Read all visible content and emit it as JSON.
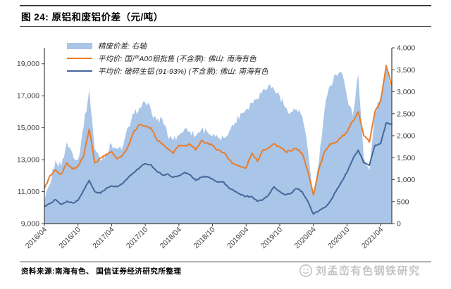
{
  "header": {
    "title": "图 24: 原铝和废铝价差（元/吨）"
  },
  "footer": {
    "source": "资料来源:南海有色、 国信证券经济研究所整理",
    "watermark": "刘孟峦有色钢铁研究",
    "watermark_icon": "smiley-logo-icon"
  },
  "colors": {
    "area": "#A9C5E8",
    "orange_line": "#E87D2B",
    "blue_line": "#44679B",
    "axis": "#404040",
    "tick_text": "#3F3F3F"
  },
  "chart_data": {
    "type": "area",
    "note": "combo chart: filled area on right axis + two lines on left axis; no gridlines; values estimated monthly from pixels",
    "x": [
      "2016/04",
      "2016/05",
      "2016/06",
      "2016/07",
      "2016/08",
      "2016/09",
      "2016/10",
      "2016/11",
      "2016/12",
      "2017/01",
      "2017/02",
      "2017/03",
      "2017/04",
      "2017/05",
      "2017/06",
      "2017/07",
      "2017/08",
      "2017/09",
      "2017/10",
      "2017/11",
      "2017/12",
      "2018/01",
      "2018/02",
      "2018/03",
      "2018/04",
      "2018/05",
      "2018/06",
      "2018/07",
      "2018/08",
      "2018/09",
      "2018/10",
      "2018/11",
      "2018/12",
      "2019/01",
      "2019/02",
      "2019/03",
      "2019/04",
      "2019/05",
      "2019/06",
      "2019/07",
      "2019/08",
      "2019/09",
      "2019/10",
      "2019/11",
      "2019/12",
      "2020/01",
      "2020/02",
      "2020/03",
      "2020/04",
      "2020/05",
      "2020/06",
      "2020/07",
      "2020/08",
      "2020/09",
      "2020/10",
      "2020/11",
      "2020/12",
      "2021/01",
      "2021/02",
      "2021/03",
      "2021/04",
      "2021/05",
      "2021/06"
    ],
    "x_tick_labels": [
      "2016/04",
      "2016/10",
      "2017/04",
      "2017/10",
      "2018/04",
      "2018/10",
      "2019/04",
      "2019/10",
      "2020/04",
      "2020/10",
      "2021/04"
    ],
    "x_tick_every_months": 6,
    "left_axis": {
      "min": 9000,
      "max": 20000,
      "ticks": [
        9000,
        11000,
        13000,
        15000,
        17000,
        19000
      ],
      "tick_labels": [
        "9,000",
        "11,000",
        "13,000",
        "15,000",
        "17,000",
        "19,000"
      ]
    },
    "right_axis": {
      "min": 0,
      "max": 4000,
      "ticks": [
        0,
        500,
        1000,
        1500,
        2000,
        2500,
        3000,
        3500,
        4000
      ],
      "tick_labels": [
        "0",
        "500",
        "1,000",
        "1,500",
        "2,000",
        "2,500",
        "3,000",
        "3,500",
        "4,000"
      ]
    },
    "legend_position": "top",
    "series": [
      {
        "name": "精废价差: 右轴",
        "type": "area",
        "axis": "right",
        "color": "#A9C5E8",
        "values": [
          500,
          900,
          1450,
          1300,
          1850,
          1600,
          1450,
          2200,
          3050,
          1700,
          1450,
          1600,
          1800,
          1700,
          1750,
          2200,
          2500,
          2650,
          2750,
          2600,
          2350,
          2400,
          2000,
          1900,
          2000,
          2150,
          2100,
          2000,
          2150,
          2100,
          2000,
          1950,
          1950,
          2100,
          2300,
          2500,
          2600,
          2750,
          2850,
          3050,
          3150,
          3050,
          2900,
          2650,
          2550,
          2600,
          2450,
          1700,
          620,
          1400,
          2600,
          3150,
          3400,
          3450,
          2900,
          2450,
          3400,
          1500,
          1200,
          2500,
          2900,
          3550,
          3100
        ]
      },
      {
        "name": "平均价: 国产A00铝批售 (不含票): 佛山: 南海有色",
        "type": "line",
        "axis": "left",
        "color": "#E87D2B",
        "values": [
          11200,
          12000,
          12350,
          12100,
          12800,
          12400,
          12600,
          13200,
          14900,
          12800,
          13100,
          13350,
          13500,
          13050,
          13300,
          13900,
          14800,
          15200,
          15100,
          15000,
          14300,
          14000,
          13700,
          13400,
          13900,
          13850,
          13950,
          13600,
          14200,
          14050,
          13900,
          13600,
          13450,
          13000,
          12700,
          12550,
          12500,
          13400,
          12900,
          13600,
          13750,
          14000,
          13800,
          13500,
          13550,
          13700,
          13400,
          12300,
          10800,
          12400,
          13500,
          14000,
          14100,
          14400,
          14700,
          15400,
          16000,
          14500,
          14100,
          16000,
          16700,
          18900,
          17600
        ]
      },
      {
        "name": "平均价: 破碎生铝 (91-93%) (不含票): 佛山: 南海有色",
        "type": "line",
        "axis": "left",
        "color": "#44679B",
        "values": [
          10100,
          10250,
          10500,
          10200,
          10400,
          10300,
          10450,
          11100,
          11700,
          11000,
          10900,
          11200,
          11350,
          11300,
          11500,
          11900,
          12200,
          12500,
          12750,
          12700,
          12300,
          12050,
          12100,
          11900,
          12000,
          12200,
          12050,
          11700,
          11900,
          11950,
          11800,
          11600,
          11600,
          11200,
          11000,
          10800,
          10700,
          10700,
          10400,
          10500,
          10800,
          11300,
          11000,
          10800,
          10900,
          11200,
          11000,
          10400,
          9600,
          9800,
          10000,
          10400,
          11000,
          11600,
          12200,
          13000,
          13600,
          12800,
          12650,
          13900,
          14000,
          15300,
          15250
        ]
      }
    ]
  }
}
